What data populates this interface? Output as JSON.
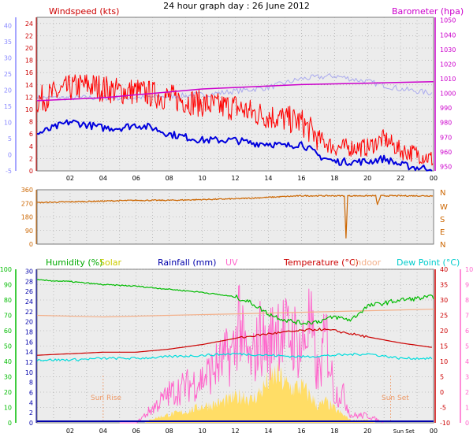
{
  "title": "24 hour graph day : 26 June 2012",
  "colors": {
    "panel_bg": "#ececec",
    "grid": "#9a9a9a",
    "frame": "#7a7a7a",
    "wind_gust": "#ff0000",
    "wind_avg": "#0000dd",
    "barometer": "#cc00cc",
    "wind_ghost": "#aaaaee",
    "direction": "#cc6600",
    "humidity": "#00bb00",
    "solar": "#ffdd66",
    "rainfall": "#0000aa",
    "uv": "#ff66cc",
    "temperature": "#cc0000",
    "indoor": "#f3b08a",
    "dewpoint": "#00dddd",
    "axis_blue": "#8888ff",
    "axis_green": "#00bb00"
  },
  "chart_data": [
    {
      "type": "line",
      "name": "wind-baro",
      "labels": {
        "left": "Windspeed (kts)",
        "right": "Barometer (hpa)"
      },
      "x_ticks": [
        "02",
        "04",
        "06",
        "08",
        "10",
        "12",
        "14",
        "16",
        "18",
        "20",
        "22",
        "00"
      ],
      "y_left_ticks": [
        "0",
        "2",
        "4",
        "6",
        "8",
        "10",
        "12",
        "14",
        "16",
        "18",
        "20",
        "22",
        "24"
      ],
      "y_left2_ticks": [
        "-5",
        "0",
        "5",
        "10",
        "15",
        "20",
        "25",
        "30",
        "35",
        "40"
      ],
      "y_right_ticks": [
        "950",
        "960",
        "970",
        "980",
        "990",
        "1000",
        "1010",
        "1020",
        "1030",
        "1040",
        "1050"
      ],
      "ylim_left": [
        0,
        25
      ],
      "ylim_right": [
        947,
        1052
      ],
      "xlim": [
        0,
        24
      ],
      "series": [
        {
          "name": "Windspeed (kts)",
          "axis": "left",
          "x": [
            0,
            1,
            2,
            3,
            4,
            5,
            6,
            7,
            8,
            9,
            10,
            11,
            12,
            13,
            14,
            15,
            16,
            17,
            18,
            19,
            20,
            21,
            22,
            23,
            24
          ],
          "values": [
            11,
            12,
            13,
            13.5,
            13,
            12.5,
            12.5,
            12,
            11.5,
            11,
            10.5,
            10,
            10,
            9,
            8.5,
            8,
            7.5,
            5,
            3.5,
            3.5,
            3.5,
            5,
            3,
            2.5,
            1.5
          ]
        },
        {
          "axis": "left",
          "x": [
            0,
            1,
            2,
            3,
            4,
            5,
            6,
            7,
            8,
            9,
            10,
            11,
            12,
            13,
            14,
            15,
            16,
            17,
            18,
            19,
            20,
            21,
            22,
            23,
            24
          ],
          "values": [
            6,
            7,
            8,
            7.5,
            7,
            7,
            7.5,
            7,
            6,
            5.5,
            5,
            5,
            5,
            4.5,
            4.5,
            4,
            4.5,
            2.5,
            1.5,
            1.5,
            1.5,
            2,
            1,
            0.5,
            0.5
          ]
        },
        {
          "name": "Barometer (hpa)",
          "axis": "right",
          "x": [
            0,
            2,
            4,
            6,
            8,
            10,
            12,
            14,
            16,
            18,
            20,
            22,
            24
          ],
          "values": [
            995,
            996,
            997,
            999,
            1001,
            1003,
            1004,
            1005,
            1006,
            1006.5,
            1007,
            1007.5,
            1008
          ]
        }
      ]
    },
    {
      "type": "line",
      "name": "direction",
      "y_left_ticks": [
        "0",
        "90",
        "180",
        "270",
        "360"
      ],
      "y_right_ticks": [
        "N",
        "E",
        "S",
        "W",
        "N"
      ],
      "ylim": [
        0,
        360
      ],
      "series": [
        {
          "x": [
            0,
            2,
            4,
            6,
            8,
            10,
            12,
            14,
            16,
            18,
            18.6,
            18.7,
            18.8,
            19,
            20,
            20.5,
            20.6,
            20.8,
            21,
            22,
            24
          ],
          "values": [
            275,
            280,
            285,
            290,
            290,
            295,
            300,
            310,
            320,
            320,
            320,
            40,
            320,
            320,
            320,
            320,
            260,
            320,
            320,
            320,
            320
          ]
        }
      ]
    },
    {
      "type": "line",
      "name": "temp-humidity",
      "labels": {
        "humidity": "Humidity (%)",
        "solar": "Solar",
        "rainfall": "Rainfall (mm)",
        "uv": "UV",
        "temperature": "Temperature (°C)",
        "indoor": "Indoor",
        "dewpoint": "Dew Point (°C)"
      },
      "annotations": {
        "sunrise": "Sun Rise",
        "sunset": "Sun Set",
        "sunset_tick": "Sun Set"
      },
      "x_ticks": [
        "02",
        "04",
        "06",
        "08",
        "10",
        "12",
        "14",
        "16",
        "18",
        "20",
        "00"
      ],
      "y_hum_ticks": [
        "0",
        "10",
        "20",
        "30",
        "40",
        "50",
        "60",
        "70",
        "80",
        "90",
        "100"
      ],
      "y_left2_ticks": [
        "0",
        "2",
        "4",
        "6",
        "8",
        "10",
        "12",
        "14",
        "16",
        "18",
        "20",
        "22",
        "24",
        "26",
        "28",
        "30"
      ],
      "y_temp_ticks": [
        "-10",
        "-5",
        "0",
        "5",
        "10",
        "15",
        "20",
        "25",
        "30",
        "35",
        "40"
      ],
      "y_uv_ticks": [
        "0",
        "1",
        "2",
        "3",
        "4",
        "5",
        "6",
        "7",
        "8",
        "9",
        "10"
      ],
      "ylim_temp": [
        -10,
        40
      ],
      "ylim_hum": [
        0,
        100
      ],
      "series": [
        {
          "name": "Humidity (%)",
          "axis": "hum",
          "x": [
            0,
            2,
            4,
            6,
            8,
            10,
            12,
            13,
            14,
            15,
            16,
            17,
            18,
            19,
            20,
            21,
            22,
            24
          ],
          "values": [
            93,
            92,
            90,
            89,
            87,
            85,
            82,
            78,
            71,
            67,
            65,
            66,
            69,
            67,
            76,
            78,
            80,
            82
          ]
        },
        {
          "name": "Temperature (°C)",
          "axis": "temp",
          "x": [
            0,
            2,
            4,
            6,
            8,
            10,
            12,
            14,
            16,
            17,
            18,
            19,
            20,
            22,
            24
          ],
          "values": [
            12,
            12.5,
            13,
            13,
            14,
            15.5,
            17.5,
            19,
            20,
            20.5,
            20,
            19,
            18,
            16,
            14.5
          ]
        },
        {
          "name": "Indoor",
          "axis": "temp",
          "x": [
            0,
            4,
            8,
            12,
            16,
            20,
            24
          ],
          "values": [
            25,
            24.5,
            25,
            25.5,
            26,
            26.5,
            27
          ]
        },
        {
          "name": "Dew Point (°C)",
          "axis": "temp",
          "x": [
            0,
            2,
            4,
            6,
            8,
            10,
            12,
            14,
            16,
            18,
            20,
            22,
            24
          ],
          "values": [
            10.5,
            10.5,
            11,
            11,
            11.5,
            12,
            12.5,
            12,
            11.5,
            12,
            12.5,
            11,
            11
          ]
        },
        {
          "name": "Rainfall (mm)",
          "axis": "temp",
          "x": [
            0,
            24
          ],
          "values": [
            -9.5,
            -9.5
          ]
        },
        {
          "name": "Solar",
          "axis": "hum",
          "x": [
            6.5,
            7,
            8,
            9,
            10,
            11,
            12,
            12.5,
            13,
            13.5,
            14,
            14.5,
            15,
            15.5,
            16,
            16.5,
            17,
            17.5,
            18,
            18.5,
            19,
            20,
            20.5
          ],
          "values": [
            0,
            3,
            6,
            8,
            12,
            14,
            18,
            20,
            16,
            22,
            30,
            35,
            28,
            25,
            26,
            20,
            12,
            15,
            10,
            6,
            2,
            2,
            0
          ]
        },
        {
          "name": "UV",
          "axis": "uv",
          "x": [
            5,
            6,
            7,
            8,
            9,
            10,
            11,
            12,
            12.2,
            12.5,
            13,
            13.5,
            14,
            14.5,
            15,
            15.5,
            16,
            16.5,
            17,
            17.5,
            18,
            18.5,
            19,
            20,
            21
          ],
          "values": [
            0,
            0,
            1,
            2,
            2.5,
            3,
            4,
            5,
            8,
            5,
            4,
            6,
            5,
            7,
            6,
            6,
            5,
            7,
            3,
            6,
            2,
            2,
            0.5,
            0.5,
            0
          ]
        }
      ]
    }
  ]
}
